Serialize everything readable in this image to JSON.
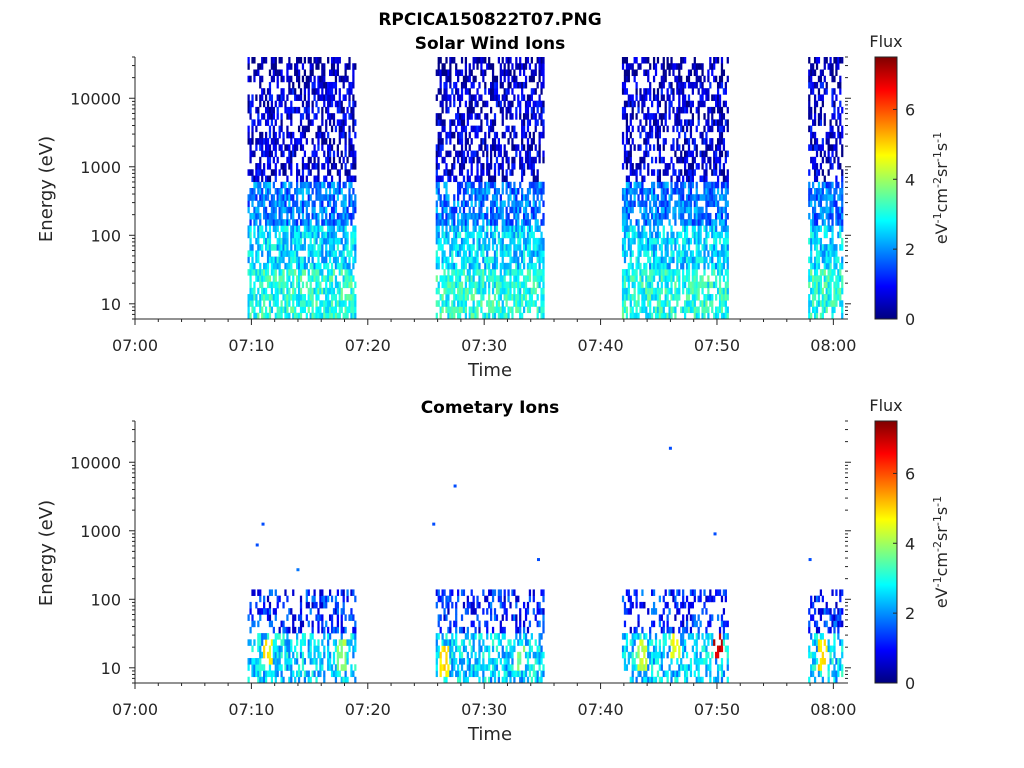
{
  "figure": {
    "title": "RPCICA150822T07.PNG"
  },
  "colormap": {
    "name": "jet",
    "stops": [
      "#00007f",
      "#0000ff",
      "#007fff",
      "#00ffff",
      "#7fff7f",
      "#ffff00",
      "#ff7f00",
      "#ff0000",
      "#7f0000"
    ]
  },
  "chart_data": [
    {
      "type": "heatmap",
      "title": "Solar Wind Ions",
      "xlabel": "Time",
      "ylabel": "Energy (eV)",
      "y_scale": "log",
      "xlim": [
        "07:00",
        "08:01"
      ],
      "ylim": [
        6,
        40000
      ],
      "xticks": [
        "07:00",
        "07:10",
        "07:20",
        "07:30",
        "07:40",
        "07:50",
        "08:00"
      ],
      "yticks": [
        10,
        100,
        1000,
        10000
      ],
      "ytick_labels": [
        "10",
        "100",
        "1000",
        "10000"
      ],
      "colorbar": {
        "title": "Flux",
        "label": "eV-1cm-2sr-1s-1",
        "range": [
          0,
          7.5
        ],
        "ticks": [
          0,
          2,
          4,
          6
        ]
      },
      "bursts": [
        {
          "start": "07:09:40",
          "end": "07:18:50"
        },
        {
          "start": "07:25:50",
          "end": "07:35:10"
        },
        {
          "start": "07:41:50",
          "end": "07:50:50"
        },
        {
          "start": "07:57:50",
          "end": "08:00:40"
        }
      ],
      "flux_profile": [
        {
          "energy_range": [
            6,
            30
          ],
          "typical_flux": 3.0
        },
        {
          "energy_range": [
            30,
            150
          ],
          "typical_flux": 2.5
        },
        {
          "energy_range": [
            150,
            600
          ],
          "typical_flux": 1.8
        },
        {
          "energy_range": [
            600,
            16000
          ],
          "typical_flux": 0.6
        },
        {
          "energy_range": [
            16000,
            40000
          ],
          "typical_flux": 0.3
        }
      ]
    },
    {
      "type": "heatmap",
      "title": "Cometary Ions",
      "xlabel": "Time",
      "ylabel": "Energy (eV)",
      "y_scale": "log",
      "xlim": [
        "07:00",
        "08:01"
      ],
      "ylim": [
        6,
        40000
      ],
      "xticks": [
        "07:00",
        "07:10",
        "07:20",
        "07:30",
        "07:40",
        "07:50",
        "08:00"
      ],
      "yticks": [
        10,
        100,
        1000,
        10000
      ],
      "ytick_labels": [
        "10",
        "100",
        "1000",
        "10000"
      ],
      "colorbar": {
        "title": "Flux",
        "label": "eV-1cm-2sr-1s-1",
        "range": [
          0,
          7.5
        ],
        "ticks": [
          0,
          2,
          4,
          6
        ]
      },
      "bursts": [
        {
          "start": "07:09:40",
          "end": "07:18:50"
        },
        {
          "start": "07:25:50",
          "end": "07:35:10"
        },
        {
          "start": "07:41:50",
          "end": "07:50:50"
        },
        {
          "start": "07:57:50",
          "end": "08:00:40"
        }
      ],
      "flux_profile": [
        {
          "energy_range": [
            6,
            30
          ],
          "typical_flux": 2.5
        },
        {
          "energy_range": [
            30,
            150
          ],
          "typical_flux": 1.2
        }
      ],
      "hotspots": [
        {
          "time": "07:11:20",
          "energy": 18,
          "flux": 5.0
        },
        {
          "time": "07:17:40",
          "energy": 15,
          "flux": 4.2
        },
        {
          "time": "07:26:30",
          "energy": 12,
          "flux": 5.2
        },
        {
          "time": "07:33:00",
          "energy": 14,
          "flux": 4.0
        },
        {
          "time": "07:43:30",
          "energy": 15,
          "flux": 4.5
        },
        {
          "time": "07:46:20",
          "energy": 22,
          "flux": 4.8
        },
        {
          "time": "07:50:00",
          "energy": 20,
          "flux": 7.2
        },
        {
          "time": "07:59:00",
          "energy": 15,
          "flux": 5.2
        }
      ],
      "isolated_points": [
        {
          "time": "07:10:30",
          "energy": 620,
          "flux": 1.5
        },
        {
          "time": "07:11:00",
          "energy": 1250,
          "flux": 1.5
        },
        {
          "time": "07:14:00",
          "energy": 270,
          "flux": 1.8
        },
        {
          "time": "07:25:40",
          "energy": 1250,
          "flux": 1.5
        },
        {
          "time": "07:27:30",
          "energy": 4500,
          "flux": 1.5
        },
        {
          "time": "07:34:40",
          "energy": 380,
          "flux": 1.5
        },
        {
          "time": "07:46:00",
          "energy": 16000,
          "flux": 1.5
        },
        {
          "time": "07:49:50",
          "energy": 900,
          "flux": 1.5
        },
        {
          "time": "07:58:00",
          "energy": 380,
          "flux": 1.5
        }
      ]
    }
  ]
}
